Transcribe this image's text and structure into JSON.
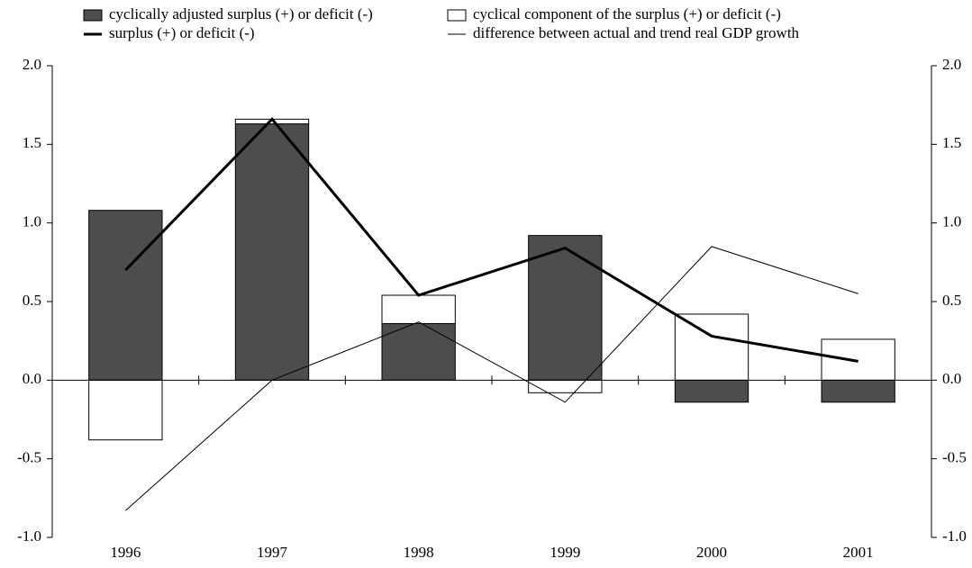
{
  "chart_data": {
    "type": "bar-line",
    "categories": [
      "1996",
      "1997",
      "1998",
      "1999",
      "2000",
      "2001"
    ],
    "series": [
      {
        "name": "cyclically adjusted surplus (+) or deficit (-)",
        "kind": "bar",
        "color": "#4d4d4d",
        "values": [
          1.08,
          1.63,
          0.36,
          0.92,
          -0.14,
          -0.14
        ]
      },
      {
        "name": "cyclical component of the surplus (+) or deficit (-)",
        "kind": "bar",
        "color": "#ffffff",
        "values": [
          -0.38,
          0.03,
          0.18,
          -0.08,
          0.42,
          0.26
        ]
      },
      {
        "name": "surplus (+) or deficit (-)",
        "kind": "line",
        "color": "#000000",
        "width": 3,
        "values": [
          0.7,
          1.66,
          0.54,
          0.84,
          0.28,
          0.12
        ]
      },
      {
        "name": "difference between actual and trend real GDP growth",
        "kind": "line",
        "color": "#000000",
        "width": 1,
        "values": [
          -0.83,
          0.0,
          0.37,
          -0.14,
          0.85,
          0.55
        ]
      }
    ],
    "ylim": [
      -1,
      2
    ],
    "yticks": [
      {
        "value": -1,
        "label": "-1.0"
      },
      -0.5,
      {
        "value": 0,
        "label": "0.0"
      },
      0.5,
      {
        "value": 1,
        "label": "1.0"
      },
      1.5,
      {
        "value": 2,
        "label": "2.0"
      }
    ],
    "y2lim": [
      -1,
      2
    ],
    "y2ticks": [
      {
        "value": -1,
        "label": "-1.0"
      },
      -0.5,
      {
        "value": 0,
        "label": "0.0"
      },
      0.5,
      {
        "value": 1,
        "label": "1.0"
      },
      1.5,
      {
        "value": 2,
        "label": "2.0"
      }
    ]
  }
}
